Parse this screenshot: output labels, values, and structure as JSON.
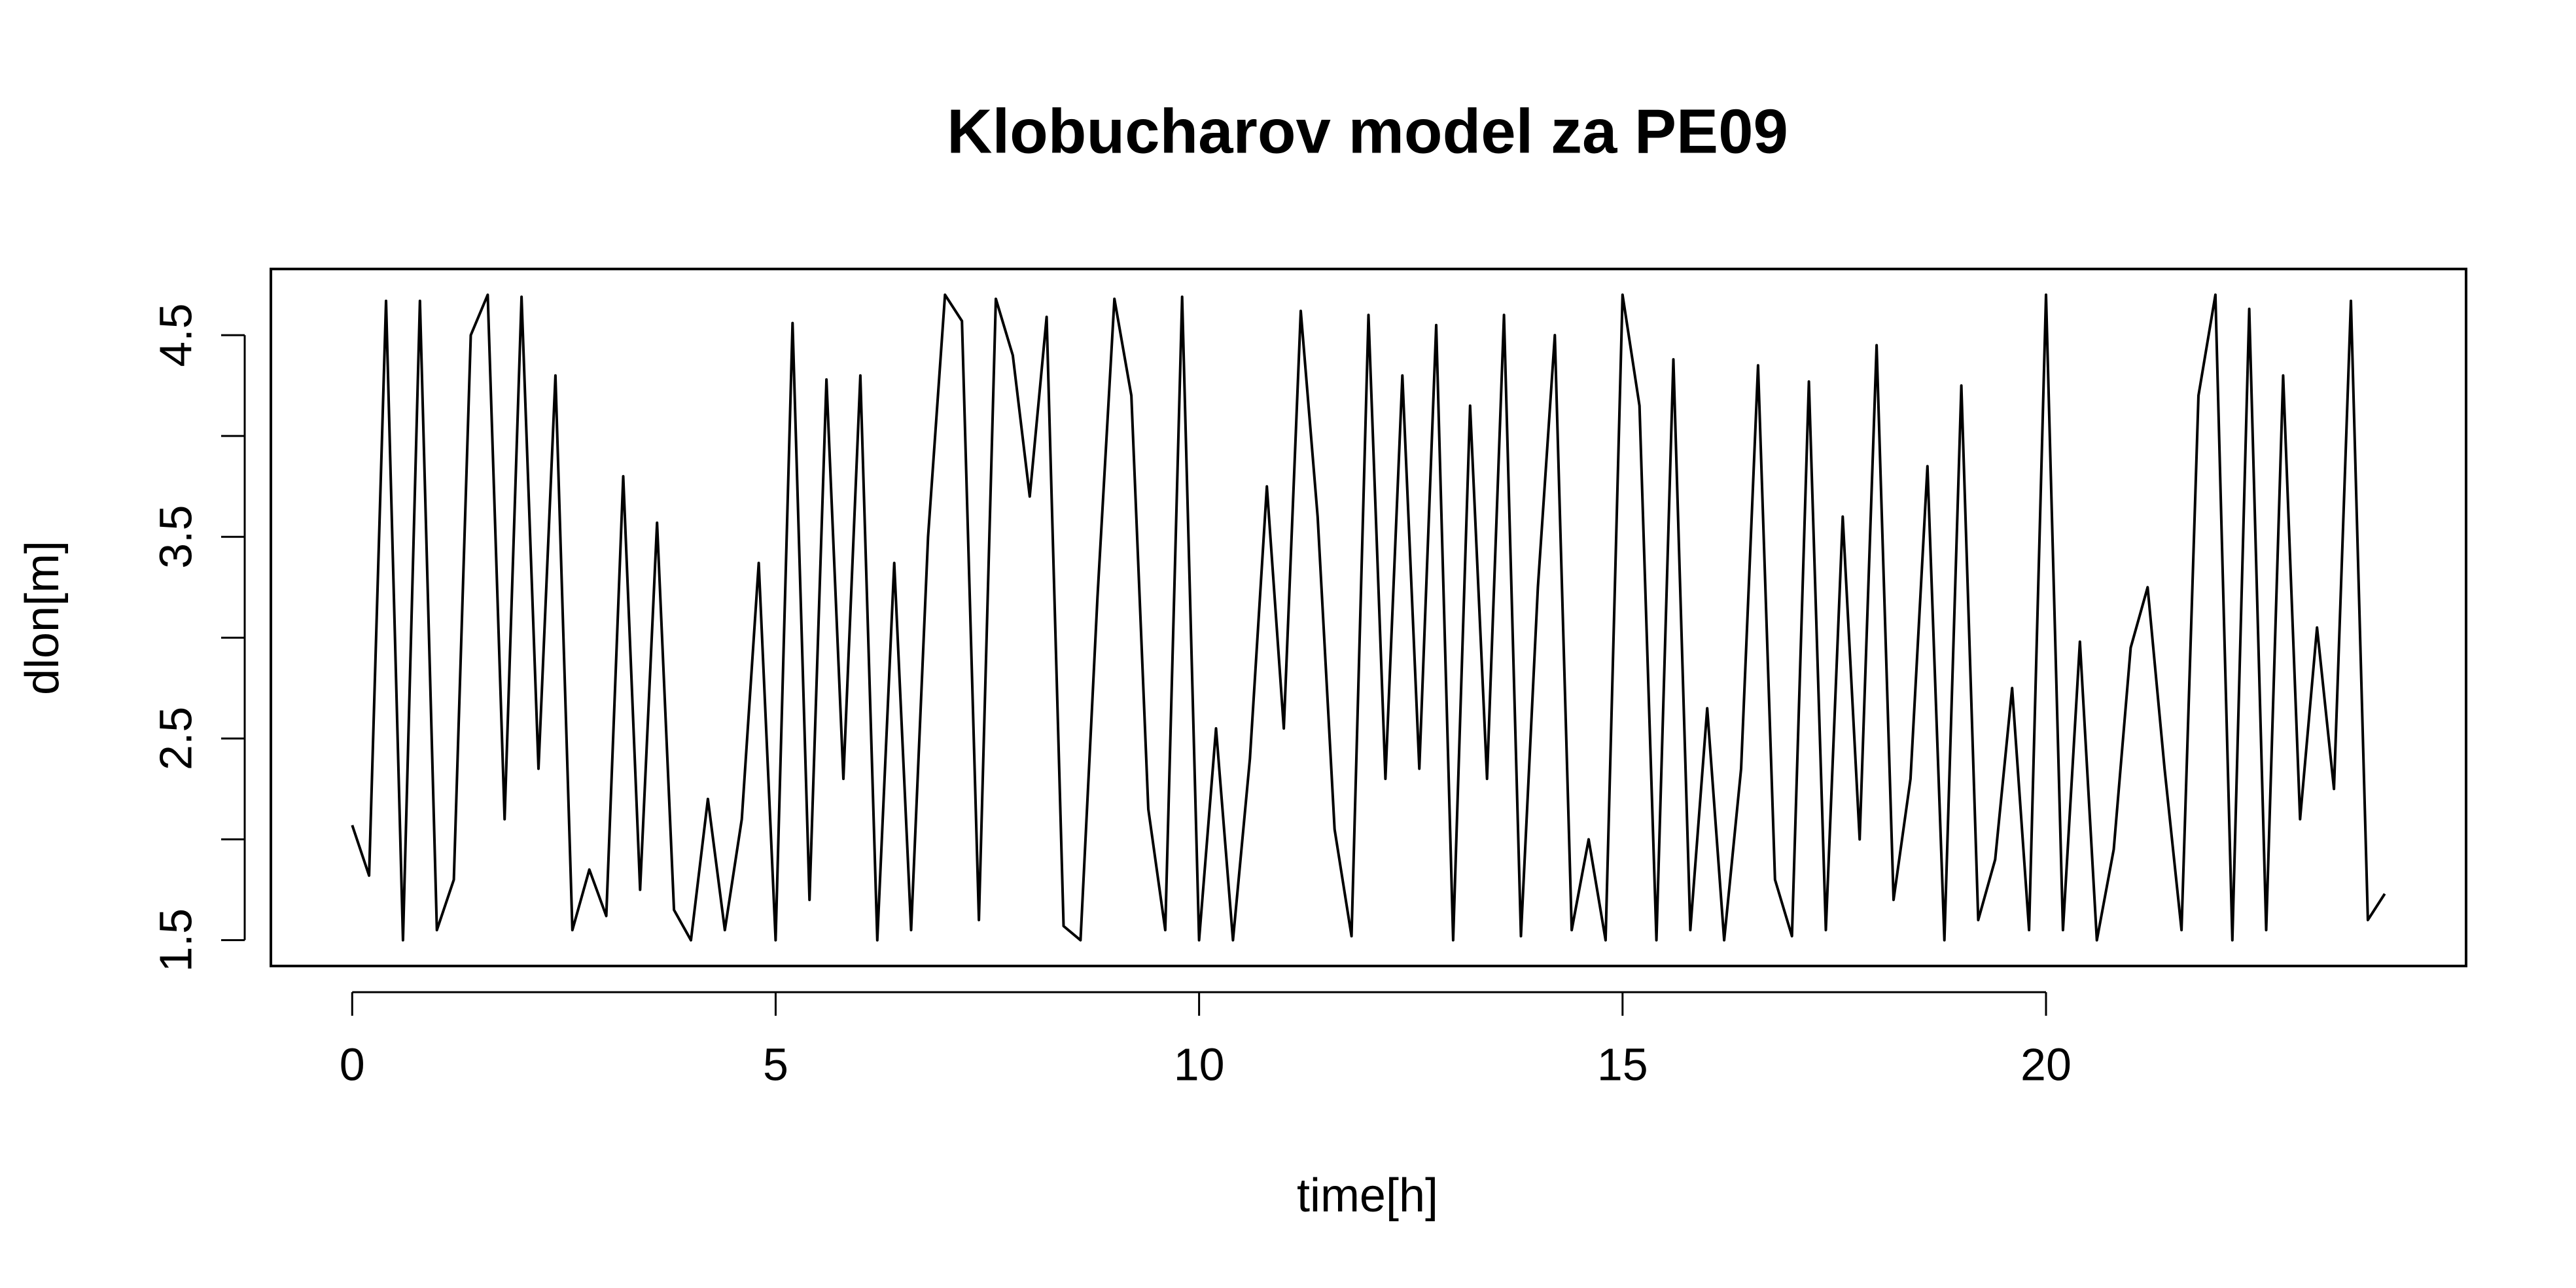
{
  "chart_data": {
    "type": "line",
    "title": "Klobucharov model za PE09",
    "x_label": "time[h]",
    "y_label": "dlon[m]",
    "x": [
      0,
      0.2,
      0.4,
      0.6,
      0.8,
      1,
      1.2,
      1.4,
      1.6,
      1.8,
      2,
      2.2,
      2.4,
      2.6,
      2.8,
      3,
      3.2,
      3.4,
      3.6,
      3.8,
      4,
      4.2,
      4.4,
      4.6,
      4.8,
      5,
      5.2,
      5.4,
      5.6,
      5.8,
      6,
      6.2,
      6.4,
      6.6,
      6.8,
      7,
      7.2,
      7.4,
      7.6,
      7.8,
      8,
      8.2,
      8.4,
      8.6,
      8.8,
      9,
      9.2,
      9.4,
      9.6,
      9.8,
      10,
      10.2,
      10.4,
      10.6,
      10.8,
      11,
      11.2,
      11.4,
      11.6,
      11.8,
      12,
      12.2,
      12.4,
      12.6,
      12.8,
      13,
      13.2,
      13.4,
      13.6,
      13.8,
      14,
      14.2,
      14.4,
      14.6,
      14.8,
      15,
      15.2,
      15.4,
      15.6,
      15.8,
      16,
      16.2,
      16.4,
      16.6,
      16.8,
      17,
      17.2,
      17.4,
      17.6,
      17.8,
      18,
      18.2,
      18.4,
      18.6,
      18.8,
      19,
      19.2,
      19.4,
      19.6,
      19.8,
      20,
      20.2,
      20.4,
      20.6,
      20.8,
      21,
      21.2,
      21.4,
      21.6,
      21.8,
      22,
      22.2,
      22.4,
      22.6,
      22.8,
      23,
      23.2,
      23.4,
      23.6,
      23.8,
      24
    ],
    "series": [
      {
        "color": "#000000",
        "values": [
          2.07,
          1.82,
          4.67,
          1.5,
          4.67,
          1.55,
          1.8,
          4.5,
          4.7,
          2.1,
          4.69,
          2.35,
          4.3,
          1.55,
          1.85,
          1.62,
          3.8,
          1.75,
          3.57,
          1.65,
          1.5,
          2.2,
          1.55,
          2.1,
          3.37,
          1.5,
          4.56,
          1.7,
          4.28,
          2.3,
          4.3,
          1.5,
          3.37,
          1.55,
          3.5,
          4.7,
          4.57,
          1.6,
          4.68,
          4.4,
          3.7,
          4.59,
          1.57,
          1.5,
          3.2,
          4.68,
          4.2,
          2.15,
          1.55,
          4.69,
          1.5,
          2.55,
          1.5,
          2.4,
          3.75,
          2.55,
          4.62,
          3.6,
          2.05,
          1.52,
          4.6,
          2.3,
          4.3,
          2.35,
          4.55,
          1.5,
          4.15,
          2.3,
          4.6,
          1.52,
          3.25,
          4.5,
          1.55,
          2.0,
          1.5,
          4.7,
          4.15,
          1.5,
          4.38,
          1.55,
          2.65,
          1.5,
          2.35,
          4.35,
          1.8,
          1.52,
          4.27,
          1.55,
          3.6,
          2.0,
          4.45,
          1.7,
          2.3,
          3.85,
          1.5,
          4.25,
          1.6,
          1.9,
          2.75,
          1.55,
          4.7,
          1.55,
          2.98,
          1.5,
          1.95,
          2.95,
          3.25,
          2.35,
          1.55,
          4.2,
          4.7,
          1.5,
          4.63,
          1.55,
          4.3,
          2.1,
          3.05,
          2.25,
          4.67,
          1.6,
          1.73
        ]
      }
    ],
    "xlim": [
      -0.96,
      24.96
    ],
    "ylim": [
      1.372,
      4.828
    ],
    "xticks": [
      0,
      5,
      10,
      15,
      20
    ],
    "yticks": [
      1.5,
      2.5,
      3.5,
      4.5
    ],
    "yticks_minor": [
      2,
      3,
      4
    ]
  }
}
